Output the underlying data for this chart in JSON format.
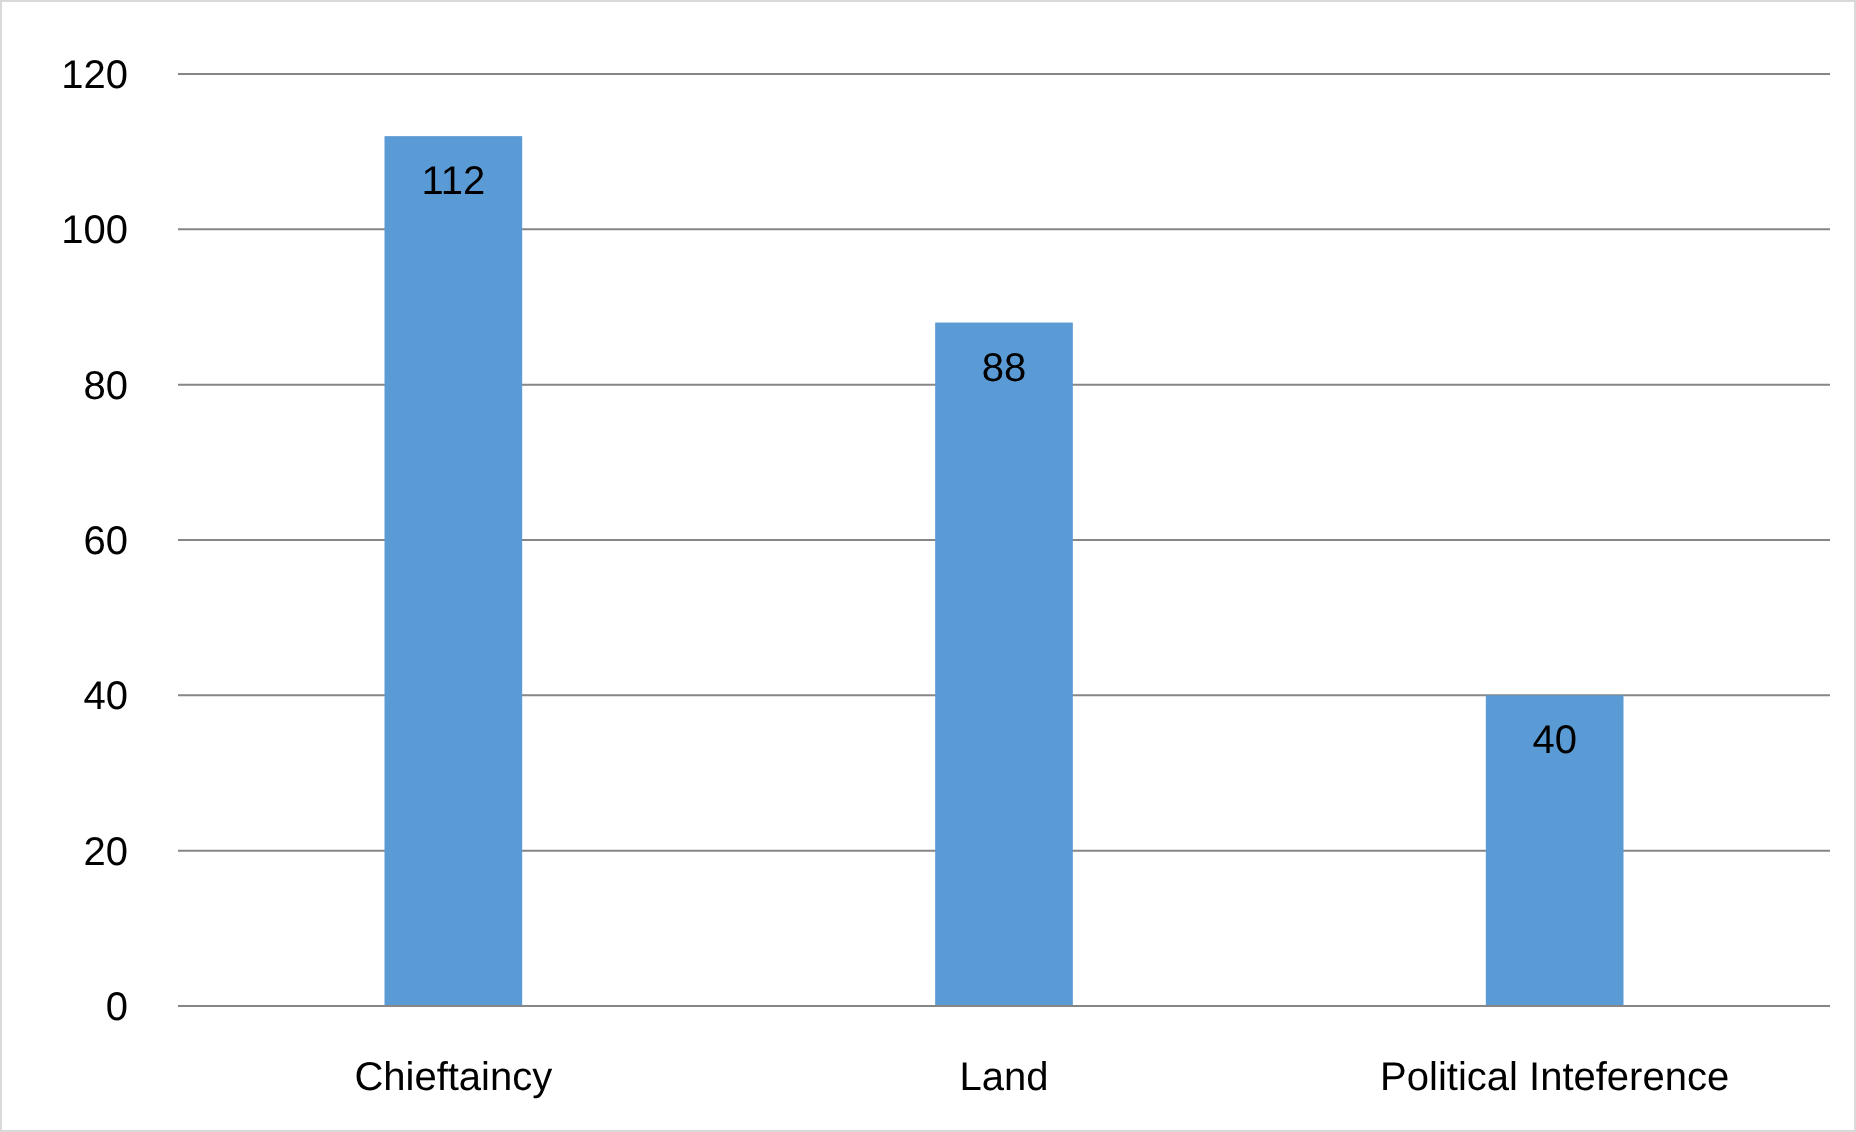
{
  "chart_data": {
    "type": "bar",
    "categories": [
      "Chieftaincy",
      "Land",
      "Political Inteference"
    ],
    "values": [
      112,
      88,
      40
    ],
    "color": "#5b9bd5",
    "ylim": [
      0,
      120
    ],
    "yticks": [
      0,
      20,
      40,
      60,
      80,
      100,
      120
    ],
    "grid": "y",
    "data_labels": true
  }
}
